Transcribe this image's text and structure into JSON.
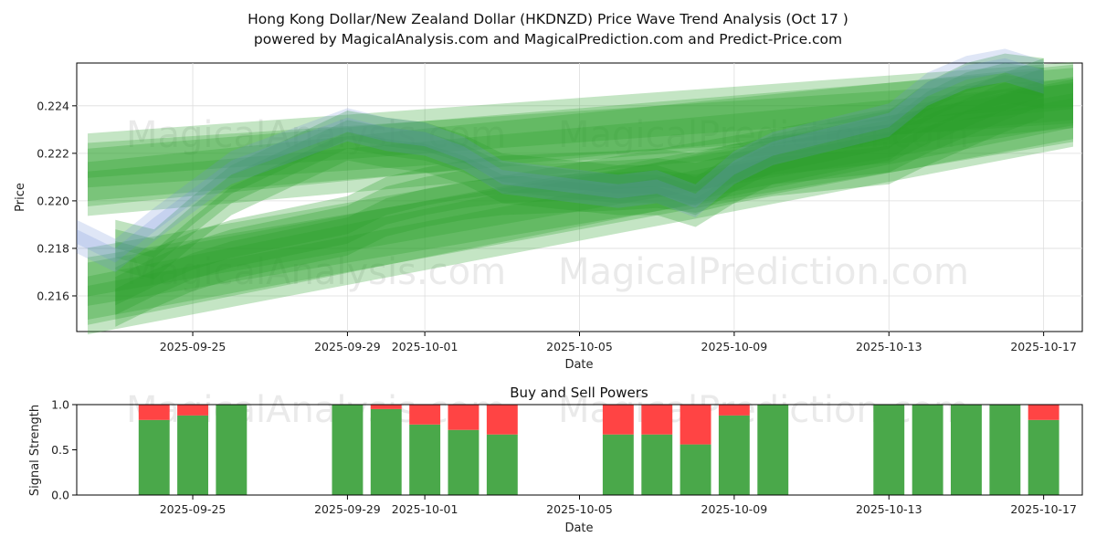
{
  "title_line1": "Hong Kong Dollar/New Zealand Dollar (HKDNZD) Price Wave Trend Analysis (Oct 17 )",
  "title_line2": "powered by MagicalAnalysis.com and MagicalPrediction.com and Predict-Price.com",
  "watermarks": [
    "MagicalAnalysis.com",
    "MagicalPrediction.com"
  ],
  "colors": {
    "band": "#2ca02c",
    "blue": "#6f8fd8",
    "buy": "#4aa84a",
    "sell": "#ff4444",
    "grid": "#dddddd"
  },
  "chart_data": [
    {
      "type": "area",
      "title": "",
      "xlabel": "Date",
      "ylabel": "Price",
      "xlim": [
        "2025-09-22",
        "2025-10-18"
      ],
      "ylim": [
        0.2145,
        0.2258
      ],
      "x_ticks": [
        "2025-09-25",
        "2025-09-29",
        "2025-10-01",
        "2025-10-05",
        "2025-10-09",
        "2025-10-13",
        "2025-10-17"
      ],
      "y_ticks": [
        0.216,
        0.218,
        0.22,
        0.222,
        0.224
      ],
      "series": [
        {
          "name": "trend-band-upper",
          "x": [
            "2025-09-22",
            "2025-10-18"
          ],
          "center": [
            0.2211,
            0.2245
          ],
          "halfwidth": 0.0011
        },
        {
          "name": "trend-band-lower",
          "x": [
            "2025-09-22",
            "2025-10-18"
          ],
          "center": [
            0.2162,
            0.2238
          ],
          "halfwidth": 0.0012
        },
        {
          "name": "wave-upper",
          "x": [
            "2025-09-23",
            "2025-09-24",
            "2025-09-25",
            "2025-09-26",
            "2025-09-29",
            "2025-09-30",
            "2025-10-01",
            "2025-10-02",
            "2025-10-03",
            "2025-10-06",
            "2025-10-07",
            "2025-10-08",
            "2025-10-09",
            "2025-10-10",
            "2025-10-13",
            "2025-10-14",
            "2025-10-15",
            "2025-10-16",
            "2025-10-17"
          ],
          "values": [
            0.2182,
            0.2178,
            0.2192,
            0.2205,
            0.2228,
            0.2225,
            0.2223,
            0.2218,
            0.221,
            0.2205,
            0.2205,
            0.22,
            0.221,
            0.2218,
            0.2228,
            0.224,
            0.2248,
            0.2252,
            0.225
          ],
          "halfwidth": 0.0006
        },
        {
          "name": "wave-lower",
          "x": [
            "2025-09-23",
            "2025-09-24",
            "2025-09-25",
            "2025-09-26",
            "2025-09-29",
            "2025-09-30",
            "2025-10-01",
            "2025-10-02",
            "2025-10-03",
            "2025-10-06",
            "2025-10-07",
            "2025-10-08",
            "2025-10-09",
            "2025-10-10",
            "2025-10-13",
            "2025-10-14",
            "2025-10-15",
            "2025-10-16",
            "2025-10-17"
          ],
          "values": [
            0.216,
            0.2168,
            0.2175,
            0.218,
            0.219,
            0.2198,
            0.2202,
            0.2205,
            0.2207,
            0.2209,
            0.221,
            0.2208,
            0.2212,
            0.2215,
            0.222,
            0.2228,
            0.2235,
            0.2242,
            0.2248
          ],
          "halfwidth": 0.0008
        },
        {
          "name": "blue-wave",
          "x": [
            "2025-09-22",
            "2025-09-23",
            "2025-09-24",
            "2025-09-25",
            "2025-09-26",
            "2025-09-29",
            "2025-09-30",
            "2025-10-01",
            "2025-10-02",
            "2025-10-03",
            "2025-10-06",
            "2025-10-07",
            "2025-10-08",
            "2025-10-09",
            "2025-10-10",
            "2025-10-13",
            "2025-10-14",
            "2025-10-15",
            "2025-10-16",
            "2025-10-17"
          ],
          "values": [
            0.2183,
            0.2175,
            0.2188,
            0.22,
            0.2212,
            0.223,
            0.2226,
            0.2224,
            0.2218,
            0.2208,
            0.2202,
            0.2204,
            0.2198,
            0.2212,
            0.222,
            0.2232,
            0.2245,
            0.2252,
            0.2255,
            0.225
          ],
          "halfwidth": 0.0005
        }
      ]
    },
    {
      "type": "bar",
      "title": "Buy and Sell Powers",
      "xlabel": "Date",
      "ylabel": "Signal Strength",
      "ylim": [
        0,
        1.0
      ],
      "y_ticks": [
        0.0,
        0.5,
        1.0
      ],
      "x_ticks": [
        "2025-09-25",
        "2025-09-29",
        "2025-10-01",
        "2025-10-05",
        "2025-10-09",
        "2025-10-13",
        "2025-10-17"
      ],
      "categories": [
        "2025-09-24",
        "2025-09-25",
        "2025-09-26",
        "2025-09-29",
        "2025-09-30",
        "2025-10-01",
        "2025-10-02",
        "2025-10-03",
        "2025-10-06",
        "2025-10-07",
        "2025-10-08",
        "2025-10-09",
        "2025-10-10",
        "2025-10-13",
        "2025-10-14",
        "2025-10-15",
        "2025-10-16",
        "2025-10-17"
      ],
      "series": [
        {
          "name": "Buy",
          "values": [
            0.83,
            0.88,
            1.0,
            1.0,
            0.95,
            0.78,
            0.72,
            0.67,
            0.67,
            0.67,
            0.56,
            0.88,
            1.0,
            1.0,
            1.0,
            1.0,
            1.0,
            0.83
          ]
        },
        {
          "name": "Sell",
          "values": [
            0.17,
            0.12,
            0.0,
            0.0,
            0.05,
            0.22,
            0.28,
            0.33,
            0.33,
            0.33,
            0.44,
            0.12,
            0.0,
            0.0,
            0.0,
            0.0,
            0.0,
            0.17
          ]
        }
      ]
    }
  ]
}
